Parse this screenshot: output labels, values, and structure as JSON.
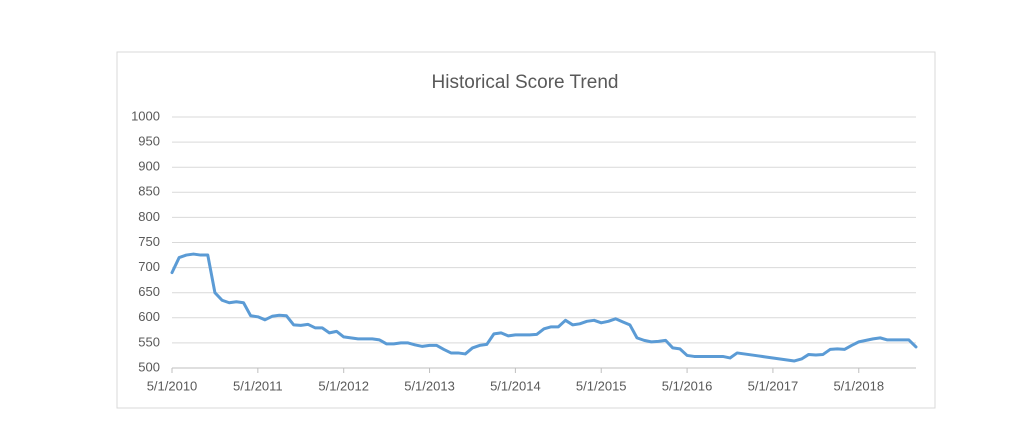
{
  "chart_data": {
    "type": "line",
    "title": "Historical Score Trend",
    "categories": [
      "5/1/2010",
      null,
      null,
      null,
      null,
      null,
      null,
      null,
      null,
      null,
      null,
      null,
      "5/1/2011",
      null,
      null,
      null,
      null,
      null,
      null,
      null,
      null,
      null,
      null,
      null,
      "5/1/2012",
      null,
      null,
      null,
      null,
      null,
      null,
      null,
      null,
      null,
      null,
      null,
      "5/1/2013",
      null,
      null,
      null,
      null,
      null,
      null,
      null,
      null,
      null,
      null,
      null,
      "5/1/2014",
      null,
      null,
      null,
      null,
      null,
      null,
      null,
      null,
      null,
      null,
      null,
      "5/1/2015",
      null,
      null,
      null,
      null,
      null,
      null,
      null,
      null,
      null,
      null,
      null,
      "5/1/2016",
      null,
      null,
      null,
      null,
      null,
      null,
      null,
      null,
      null,
      null,
      null,
      "5/1/2017",
      null,
      null,
      null,
      null,
      null,
      null,
      null,
      null,
      null,
      null,
      null,
      "5/1/2018",
      null,
      null,
      null,
      null,
      null,
      null,
      null,
      null
    ],
    "values": [
      690,
      720,
      725,
      727,
      725,
      725,
      650,
      635,
      630,
      632,
      630,
      604,
      602,
      596,
      603,
      605,
      604,
      586,
      585,
      587,
      580,
      580,
      570,
      573,
      562,
      560,
      558,
      558,
      558,
      556,
      548,
      548,
      550,
      550,
      546,
      543,
      545,
      545,
      537,
      530,
      530,
      528,
      540,
      545,
      547,
      568,
      570,
      564,
      566,
      566,
      566,
      567,
      578,
      582,
      582,
      595,
      586,
      588,
      593,
      595,
      590,
      593,
      598,
      592,
      586,
      560,
      555,
      552,
      553,
      555,
      540,
      538,
      525,
      523,
      523,
      523,
      523,
      523,
      520,
      530,
      528,
      526,
      524,
      522,
      520,
      518,
      516,
      514,
      518,
      527,
      526,
      527,
      537,
      538,
      537,
      545,
      552,
      555,
      558,
      560,
      556,
      556,
      556,
      556,
      542
    ],
    "color": "#5b9bd5",
    "ylim": [
      500,
      1000
    ],
    "yticks": [
      500,
      550,
      600,
      650,
      700,
      750,
      800,
      850,
      900,
      950,
      1000
    ],
    "grid": true
  }
}
